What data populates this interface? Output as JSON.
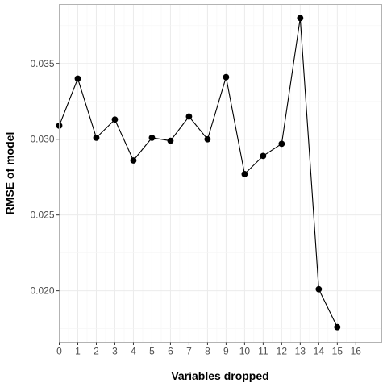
{
  "chart_data": {
    "type": "line",
    "xlabel": "Variables dropped",
    "ylabel": "RMSE of model",
    "x": [
      0,
      1,
      2,
      3,
      4,
      5,
      6,
      7,
      8,
      9,
      10,
      11,
      12,
      13,
      14,
      15
    ],
    "series": [
      {
        "values": [
          0.0309,
          0.034,
          0.0301,
          0.0313,
          0.0286,
          0.0301,
          0.0299,
          0.0315,
          0.03,
          0.0341,
          0.0277,
          0.0289,
          0.0297,
          0.038,
          0.0201,
          0.0176
        ]
      }
    ],
    "xlim": [
      0,
      17.4
    ],
    "ylim": [
      0.0166,
      0.0389
    ],
    "xticks": [
      "0",
      "1",
      "2",
      "3",
      "4",
      "5",
      "6",
      "7",
      "8",
      "9",
      "10",
      "11",
      "12",
      "13",
      "14",
      "15",
      "16"
    ],
    "yticks": [
      "0.020",
      "0.025",
      "0.030",
      "0.035"
    ],
    "grid": true,
    "colors": {
      "line": "#000000",
      "point": "#000000",
      "panel_border": "#b3b3b3",
      "grid": "#ebebeb"
    }
  }
}
